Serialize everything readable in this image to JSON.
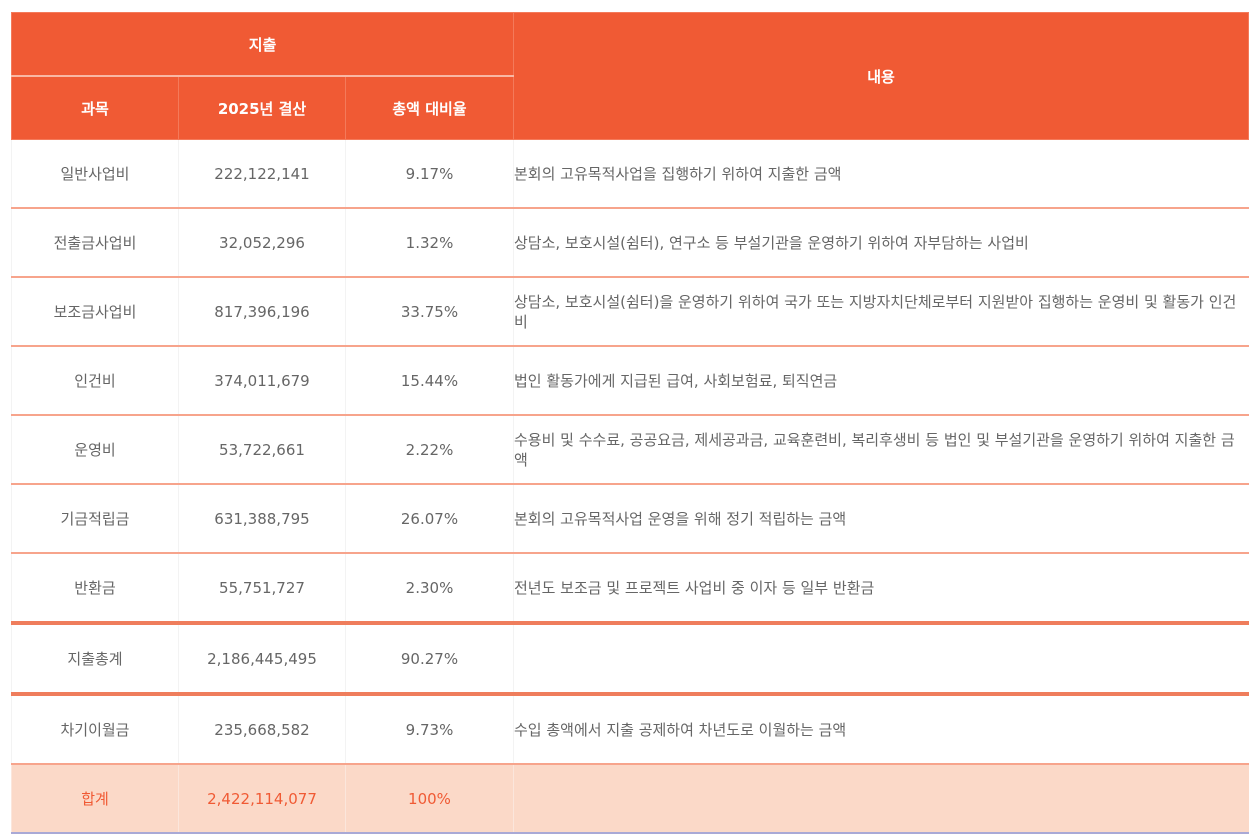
{
  "header": {
    "group": "지출",
    "content": "내용",
    "columns": [
      "과목",
      "2025년 결산",
      "총액 대비율"
    ]
  },
  "rows": [
    {
      "item": "일반사업비",
      "amount": "222,122,141",
      "ratio": "9.17%",
      "desc": "본회의 고유목적사업을 집행하기 위하여 지출한 금액"
    },
    {
      "item": "전출금사업비",
      "amount": "32,052,296",
      "ratio": "1.32%",
      "desc": "상담소, 보호시설(쉼터), 연구소 등 부설기관을 운영하기 위하여 자부담하는 사업비"
    },
    {
      "item": "보조금사업비",
      "amount": "817,396,196",
      "ratio": "33.75%",
      "desc": "상담소, 보호시설(쉼터)을 운영하기 위하여 국가 또는 지방자치단체로부터 지원받아 집행하는 운영비 및 활동가 인건비"
    },
    {
      "item": "인건비",
      "amount": "374,011,679",
      "ratio": "15.44%",
      "desc": "법인 활동가에게 지급된 급여, 사회보험료, 퇴직연금"
    },
    {
      "item": "운영비",
      "amount": "53,722,661",
      "ratio": "2.22%",
      "desc": "수용비 및 수수료, 공공요금, 제세공과금, 교육훈련비, 복리후생비 등 법인 및 부설기관을 운영하기 위하여 지출한 금액"
    },
    {
      "item": "기금적립금",
      "amount": "631,388,795",
      "ratio": "26.07%",
      "desc": "본회의 고유목적사업 운영을 위해 정기 적립하는 금액"
    },
    {
      "item": "반환금",
      "amount": "55,751,727",
      "ratio": "2.30%",
      "desc": "전년도 보조금 및 프로젝트 사업비 중 이자 등 일부 반환금"
    }
  ],
  "subtotal": {
    "item": "지출총계",
    "amount": "2,186,445,495",
    "ratio": "90.27%"
  },
  "carryover": {
    "item": "차기이월금",
    "amount": "235,668,582",
    "ratio": "9.73%",
    "desc": "수입 총액에서 지출 공제하여 차년도로 이월하는 금액"
  },
  "total": {
    "item": "합계",
    "amount": "2,422,114,077",
    "ratio": "100%"
  },
  "colors": {
    "header": "#f05a34",
    "total_bg": "#fbd9c8",
    "divider": "#f7a48c"
  }
}
